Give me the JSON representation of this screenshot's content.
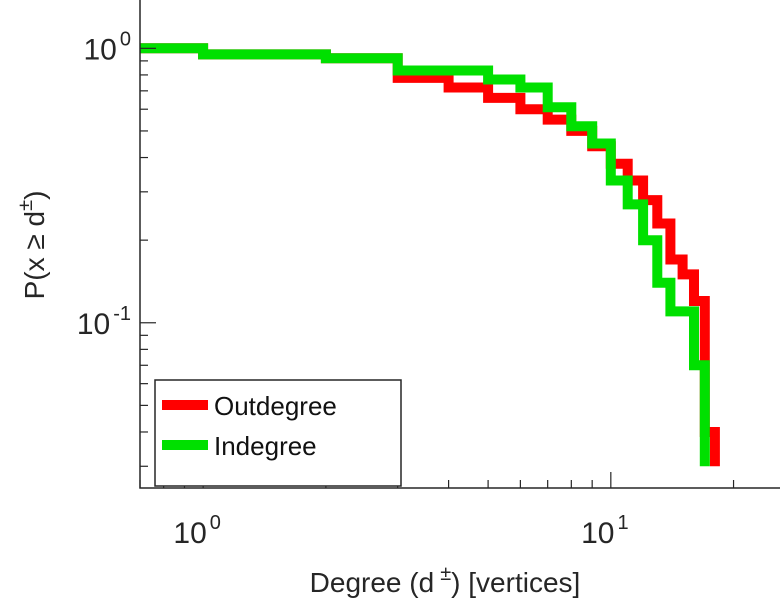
{
  "chart_data": {
    "type": "line",
    "step": true,
    "x_scale": "log",
    "y_scale": "log",
    "xlim": [
      0.7,
      26
    ],
    "ylim": [
      0.025,
      1.5
    ],
    "grid": false,
    "legend_position": "bottom-left",
    "xlabel": {
      "prefix": "Degree (d",
      "sup": "±",
      "suffix": ") [vertices]"
    },
    "ylabel": {
      "prefix": "P(x ≥ d",
      "sup": "±",
      "suffix": ")"
    },
    "x_ticks": [
      {
        "base": "10",
        "exp": "0",
        "value": 1
      },
      {
        "base": "10",
        "exp": "1",
        "value": 10
      }
    ],
    "y_ticks": [
      {
        "base": "10",
        "exp": "0",
        "value": 1
      },
      {
        "base": "10",
        "exp": "-1",
        "value": 0.1
      }
    ],
    "series": [
      {
        "name": "Outdegree",
        "color": "#ff0000",
        "x": [
          0.7,
          1,
          2,
          3,
          4,
          5,
          6,
          7,
          8,
          9,
          10,
          11,
          12,
          13,
          14,
          15,
          16,
          17,
          18
        ],
        "y": [
          1.0,
          0.95,
          0.92,
          0.78,
          0.72,
          0.66,
          0.6,
          0.55,
          0.5,
          0.44,
          0.38,
          0.33,
          0.28,
          0.23,
          0.17,
          0.15,
          0.12,
          0.04,
          0.03
        ]
      },
      {
        "name": "Indegree",
        "color": "#00e000",
        "x": [
          0.7,
          1,
          2,
          3,
          4,
          5,
          6,
          7,
          8,
          9,
          10,
          11,
          12,
          13,
          14,
          15,
          16,
          17
        ],
        "y": [
          1.0,
          0.95,
          0.92,
          0.83,
          0.83,
          0.77,
          0.72,
          0.61,
          0.52,
          0.45,
          0.33,
          0.27,
          0.2,
          0.14,
          0.11,
          0.11,
          0.07,
          0.03
        ]
      }
    ]
  }
}
